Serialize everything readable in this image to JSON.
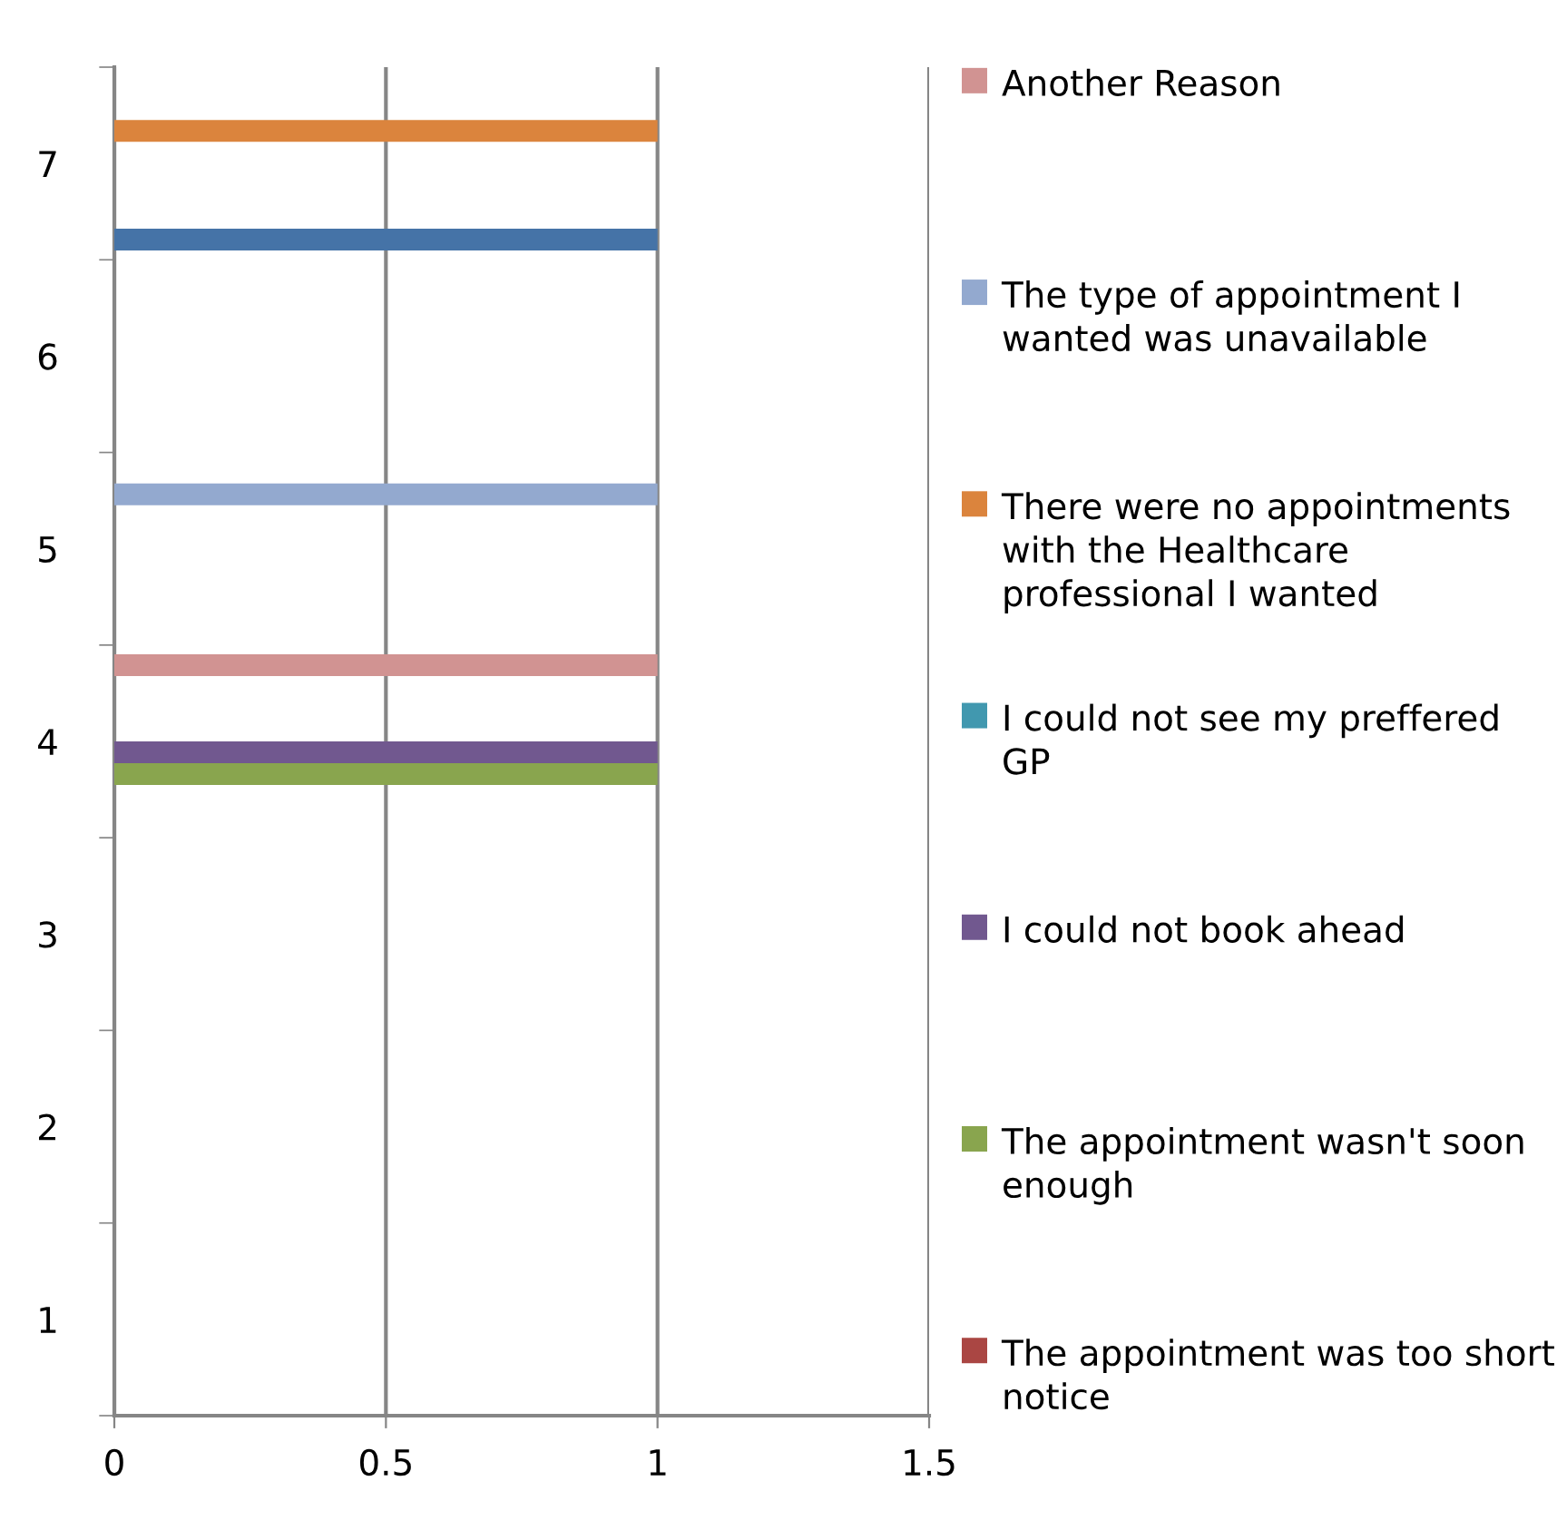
{
  "chart_data": {
    "type": "bar",
    "orientation": "horizontal",
    "categories": [
      "7",
      "6",
      "5",
      "4",
      "3",
      "2",
      "1"
    ],
    "series": [
      {
        "color": "#4573a7",
        "values": [
          1,
          null,
          null,
          null,
          null,
          null,
          null
        ]
      },
      {
        "name": "The appointment was too short notice",
        "color": "#aa4643",
        "values": [
          null,
          null,
          null,
          null,
          null,
          null,
          null
        ]
      },
      {
        "name": "The appointment wasn't soon enough",
        "color": "#89a54e",
        "values": [
          null,
          null,
          null,
          1,
          null,
          null,
          null
        ]
      },
      {
        "name": "I could not book ahead",
        "color": "#71588f",
        "values": [
          null,
          null,
          null,
          1,
          null,
          null,
          null
        ]
      },
      {
        "name": "I could not see my preffered GP",
        "color": "#4198af",
        "values": [
          null,
          null,
          null,
          null,
          null,
          null,
          null
        ]
      },
      {
        "name": "There were no appointments with the Healthcare professional I wanted",
        "color": "#db843d",
        "values": [
          1,
          null,
          null,
          null,
          null,
          null,
          null
        ]
      },
      {
        "name": "The type of appointment I wanted was unavailable",
        "color": "#93a9cf",
        "values": [
          null,
          null,
          1,
          null,
          null,
          null,
          null
        ]
      },
      {
        "name": "Another Reason",
        "color": "#d19392",
        "values": [
          null,
          null,
          null,
          1,
          null,
          null,
          null
        ]
      }
    ],
    "xlim": [
      0,
      1.5
    ],
    "xticks": [
      0,
      0.5,
      1,
      1.5
    ],
    "grid": "x",
    "legend": "right"
  }
}
